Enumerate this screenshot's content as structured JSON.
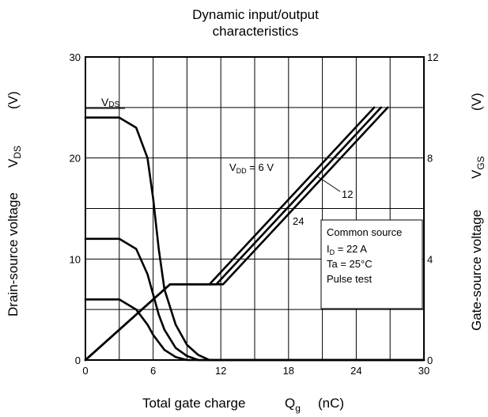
{
  "chart_data": {
    "type": "line",
    "title": "Dynamic input/output characteristics",
    "title_lines": [
      "Dynamic input/output",
      "characteristics"
    ],
    "xlabel": "Total gate charge  Q_g  (nC)",
    "xlabel_parts": {
      "text": "Total gate charge",
      "sym": "Q",
      "sub": "g",
      "unit": "(nC)"
    },
    "ylabel_left": "Drain-source voltage  V_DS  (V)",
    "ylabel_left_parts": {
      "text": "Drain-source voltage",
      "sym": "V",
      "sub": "DS",
      "unit": "(V)"
    },
    "ylabel_right": "Gate-source voltage  V_GS  (V)",
    "ylabel_right_parts": {
      "text": "Gate-source voltage",
      "sym": "V",
      "sub": "GS",
      "unit": "(V)"
    },
    "xlim": [
      0,
      30
    ],
    "ylim_left": [
      0,
      30
    ],
    "ylim_right": [
      0,
      12
    ],
    "x_ticks": [
      {
        "value": 0,
        "label": "0"
      },
      {
        "value": 6,
        "label": "6"
      },
      {
        "value": 12,
        "label": "12"
      },
      {
        "value": 18,
        "label": "18"
      },
      {
        "value": 24,
        "label": "24"
      },
      {
        "value": 30,
        "label": "30"
      }
    ],
    "y_left_ticks": [
      {
        "value": 0,
        "label": "0"
      },
      {
        "value": 10,
        "label": "10"
      },
      {
        "value": 20,
        "label": "20"
      },
      {
        "value": 30,
        "label": "30"
      }
    ],
    "y_right_ticks": [
      {
        "value": 0,
        "label": "0"
      },
      {
        "value": 4,
        "label": "4"
      },
      {
        "value": 8,
        "label": "8"
      },
      {
        "value": 12,
        "label": "12"
      }
    ],
    "grid": true,
    "grid_x_step": 3,
    "grid_y_step": 5,
    "annotations": {
      "vds_label": {
        "sym": "V",
        "sub": "DS"
      },
      "vdd_label": {
        "sym": "V",
        "sub": "DD",
        "rest": " = 6 V"
      },
      "label_12": "12",
      "label_24": "24"
    },
    "conditions": [
      "Common source",
      "I_D = 22 A",
      "Ta = 25°C",
      "Pulse test"
    ],
    "condition_parts": [
      {
        "text": "Common source"
      },
      {
        "sym": "I",
        "sub": "D",
        "rest": " = 22 A"
      },
      {
        "text": "Ta = 25°C"
      },
      {
        "text": "Pulse test"
      }
    ],
    "series": [
      {
        "axis": "left",
        "vdd": 24,
        "x": [
          0,
          3,
          4.5,
          5.5,
          6,
          6.5,
          7,
          8,
          9,
          10,
          11,
          30
        ],
        "y": [
          24,
          24,
          23,
          20,
          16,
          11,
          7,
          3.5,
          1.5,
          0.5,
          0,
          0
        ]
      },
      {
        "axis": "left",
        "vdd": 12,
        "x": [
          0,
          3,
          4.5,
          5.5,
          6,
          6.5,
          7,
          8,
          9,
          10,
          30
        ],
        "y": [
          12,
          12,
          11,
          8.5,
          6.5,
          4.5,
          3,
          1.2,
          0.4,
          0,
          0
        ]
      },
      {
        "axis": "left",
        "vdd": 6,
        "x": [
          0,
          3,
          4.5,
          5.5,
          6,
          7,
          8,
          9,
          30
        ],
        "y": [
          6,
          6,
          5,
          3.5,
          2.5,
          1,
          0.3,
          0,
          0
        ]
      },
      {
        "axis": "right",
        "vdd": 6,
        "x": [
          0,
          7.5,
          11,
          25.6
        ],
        "y": [
          0,
          3,
          3,
          10
        ]
      },
      {
        "axis": "right",
        "vdd": 12,
        "x": [
          0,
          7.5,
          11.6,
          26.2
        ],
        "y": [
          0,
          3,
          3,
          10
        ]
      },
      {
        "axis": "right",
        "vdd": 24,
        "x": [
          0,
          7.5,
          12.2,
          26.8
        ],
        "y": [
          0,
          3,
          3,
          10
        ]
      }
    ]
  }
}
